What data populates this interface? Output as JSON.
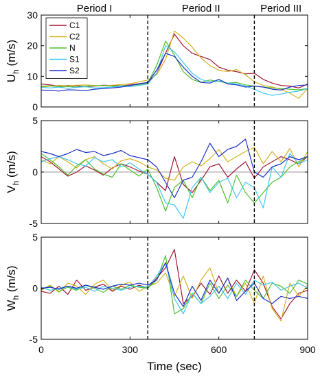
{
  "chart_data": {
    "type": "line",
    "x_tick_labels": [
      "0",
      "300",
      "600",
      "900"
    ],
    "xlabel": "Time (sec)",
    "xlim": [
      0,
      900
    ],
    "periods": [
      {
        "label": "Period I",
        "x_center": 180
      },
      {
        "label": "Period II",
        "x_center": 540
      },
      {
        "label": "Period III",
        "x_center": 810
      }
    ],
    "dividers": [
      360,
      720
    ],
    "legend": {
      "placement": "top-left",
      "entries": [
        {
          "name": "C1",
          "color": "#a2142f"
        },
        {
          "name": "C2",
          "color": "#d4b21e"
        },
        {
          "name": "N",
          "color": "#4cbf2a"
        },
        {
          "name": "S1",
          "color": "#3fc6ef"
        },
        {
          "name": "S2",
          "color": "#1d2fc8"
        }
      ]
    },
    "panels": [
      {
        "id": "uh",
        "ylabel_main": "U",
        "ylabel_sub": "h",
        "ylabel_unit": " (m/s)",
        "ylim": [
          0,
          30
        ],
        "yticks": [
          0,
          10,
          20,
          30
        ],
        "zero_line": false,
        "x": [
          0,
          30,
          60,
          90,
          120,
          150,
          180,
          210,
          240,
          270,
          300,
          330,
          360,
          390,
          420,
          450,
          480,
          510,
          540,
          570,
          600,
          630,
          660,
          690,
          720,
          750,
          780,
          810,
          840,
          870,
          900
        ],
        "series": [
          {
            "name": "C1",
            "values": [
              7.5,
              7.2,
              6.8,
              7.0,
              6.9,
              6.7,
              6.8,
              7.1,
              7.0,
              6.9,
              7.2,
              7.6,
              8.0,
              11.0,
              17.5,
              23.8,
              20.0,
              17.5,
              16.5,
              15.5,
              13.0,
              12.0,
              11.5,
              10.8,
              11.0,
              9.0,
              7.8,
              7.0,
              6.8,
              6.2,
              7.5
            ]
          },
          {
            "name": "C2",
            "values": [
              6.5,
              6.8,
              7.0,
              6.9,
              7.1,
              7.2,
              7.0,
              6.9,
              7.1,
              7.3,
              7.6,
              8.2,
              8.8,
              10.5,
              15.5,
              24.8,
              22.5,
              19.5,
              16.0,
              13.5,
              12.0,
              11.5,
              12.2,
              10.5,
              8.2,
              7.0,
              6.5,
              5.8,
              4.5,
              2.8,
              6.0
            ]
          },
          {
            "name": "N",
            "values": [
              6.8,
              6.9,
              6.6,
              6.7,
              6.5,
              6.8,
              6.9,
              7.0,
              6.8,
              6.9,
              7.0,
              7.3,
              7.8,
              13.5,
              21.5,
              17.0,
              11.5,
              9.0,
              8.0,
              8.8,
              8.3,
              7.8,
              8.0,
              7.2,
              6.8,
              6.5,
              6.2,
              6.0,
              5.8,
              5.6,
              6.0
            ]
          },
          {
            "name": "S1",
            "values": [
              6.4,
              6.2,
              6.5,
              6.1,
              6.4,
              6.6,
              6.2,
              6.3,
              6.5,
              6.8,
              6.6,
              7.0,
              7.5,
              11.0,
              20.0,
              18.0,
              14.5,
              11.0,
              9.0,
              8.2,
              8.5,
              7.8,
              7.5,
              6.8,
              5.8,
              4.5,
              3.8,
              4.2,
              4.8,
              5.2,
              6.0
            ]
          },
          {
            "name": "S2",
            "values": [
              5.5,
              5.4,
              5.2,
              5.6,
              5.5,
              5.3,
              5.8,
              6.0,
              6.2,
              6.5,
              7.0,
              7.5,
              8.0,
              12.0,
              17.5,
              16.5,
              13.0,
              10.0,
              8.0,
              7.8,
              9.0,
              7.5,
              7.2,
              6.5,
              6.8,
              6.5,
              5.8,
              5.5,
              6.5,
              7.0,
              7.2
            ]
          }
        ]
      },
      {
        "id": "vh",
        "ylabel_main": "V",
        "ylabel_sub": "h",
        "ylabel_unit": " (m/s)",
        "ylim": [
          -5,
          5
        ],
        "yticks": [
          -5,
          0,
          5
        ],
        "zero_line": true,
        "x": [
          0,
          30,
          60,
          90,
          120,
          150,
          180,
          210,
          240,
          270,
          300,
          330,
          360,
          390,
          420,
          450,
          480,
          510,
          540,
          570,
          600,
          630,
          660,
          690,
          720,
          750,
          780,
          810,
          840,
          870,
          900
        ],
        "series": [
          {
            "name": "C1",
            "values": [
              1.5,
              1.0,
              0.3,
              -0.4,
              0.0,
              0.6,
              0.2,
              -0.3,
              0.4,
              0.8,
              0.5,
              0.1,
              -0.2,
              -1.0,
              -1.8,
              1.5,
              -1.2,
              -2.0,
              -0.8,
              0.5,
              0.8,
              -0.5,
              0.3,
              1.0,
              -0.6,
              0.5,
              1.0,
              1.5,
              1.2,
              0.8,
              1.5
            ]
          },
          {
            "name": "C2",
            "values": [
              1.2,
              0.8,
              1.5,
              1.0,
              0.4,
              1.2,
              1.5,
              0.8,
              0.3,
              1.1,
              1.3,
              1.0,
              0.5,
              0.2,
              -0.6,
              -0.8,
              0.5,
              1.0,
              0.6,
              1.3,
              2.2,
              1.0,
              1.5,
              2.0,
              2.4,
              0.8,
              2.0,
              1.0,
              2.3,
              0.5,
              2.0
            ]
          },
          {
            "name": "N",
            "values": [
              1.8,
              1.2,
              0.5,
              -0.3,
              0.6,
              1.2,
              0.3,
              -0.2,
              -0.5,
              0.8,
              0.2,
              -0.4,
              0.3,
              -1.5,
              -3.8,
              -1.5,
              -0.8,
              -2.5,
              -0.5,
              -1.8,
              -0.8,
              -3.0,
              -0.3,
              -2.0,
              -3.0,
              -2.0,
              -1.0,
              -0.5,
              0.5,
              1.0,
              1.5
            ]
          },
          {
            "name": "S1",
            "values": [
              1.0,
              1.3,
              1.5,
              1.2,
              0.8,
              0.6,
              1.4,
              1.0,
              1.2,
              0.5,
              0.9,
              0.3,
              -0.2,
              -1.0,
              -3.0,
              -3.2,
              -4.5,
              -1.5,
              -0.5,
              -2.0,
              -1.0,
              -0.6,
              -2.5,
              -1.0,
              -1.5,
              -3.5,
              0.5,
              -0.5,
              1.8,
              0.8,
              1.2
            ]
          },
          {
            "name": "S2",
            "values": [
              2.0,
              1.8,
              1.5,
              1.8,
              2.2,
              1.9,
              2.0,
              1.6,
              1.8,
              2.1,
              1.6,
              1.4,
              1.2,
              0.5,
              -1.0,
              -2.5,
              -0.8,
              -0.5,
              1.0,
              2.8,
              1.5,
              2.2,
              2.5,
              3.2,
              0.0,
              -0.5,
              0.5,
              0.8,
              1.5,
              1.2,
              1.5
            ]
          }
        ]
      },
      {
        "id": "wh",
        "ylabel_main": "W",
        "ylabel_sub": "h",
        "ylabel_unit": " (m/s)",
        "ylim": [
          -5,
          5
        ],
        "yticks": [
          -5,
          0,
          5
        ],
        "zero_line": false,
        "x": [
          0,
          30,
          60,
          90,
          120,
          150,
          180,
          210,
          240,
          270,
          300,
          330,
          360,
          390,
          420,
          450,
          480,
          510,
          540,
          570,
          600,
          630,
          660,
          690,
          720,
          750,
          780,
          810,
          840,
          870,
          900
        ],
        "series": [
          {
            "name": "C1",
            "values": [
              -0.3,
              -0.5,
              0.2,
              -0.6,
              0.8,
              -0.2,
              0.1,
              0.4,
              -0.3,
              0.2,
              -0.1,
              0.3,
              0.0,
              1.0,
              2.0,
              3.8,
              -1.5,
              -0.8,
              0.5,
              -0.6,
              1.2,
              -0.5,
              0.8,
              -0.3,
              1.8,
              0.5,
              -1.8,
              -3.0,
              -1.5,
              -0.5,
              -0.2
            ]
          },
          {
            "name": "C2",
            "values": [
              -0.2,
              0.3,
              -0.4,
              0.5,
              0.2,
              -0.6,
              0.4,
              0.8,
              -0.2,
              0.3,
              0.6,
              -0.3,
              0.2,
              0.5,
              1.5,
              -0.8,
              1.2,
              -1.0,
              0.8,
              2.0,
              -0.5,
              1.0,
              -0.8,
              0.5,
              -1.5,
              1.2,
              -2.0,
              -3.2,
              0.5,
              -0.8,
              0.3
            ]
          },
          {
            "name": "N",
            "values": [
              -0.1,
              0.2,
              -0.3,
              0.1,
              -0.2,
              0.3,
              0.0,
              -0.4,
              0.2,
              -0.1,
              0.3,
              0.1,
              0.0,
              0.8,
              3.2,
              -2.5,
              -2.0,
              -0.5,
              -1.5,
              0.5,
              -1.0,
              0.3,
              -0.8,
              0.8,
              -0.2,
              -1.0,
              0.5,
              0.2,
              -0.5,
              0.8,
              0.4
            ]
          },
          {
            "name": "S1",
            "values": [
              0.1,
              -0.2,
              0.0,
              0.2,
              -0.1,
              0.1,
              -0.3,
              0.2,
              0.0,
              -0.2,
              0.1,
              0.2,
              0.1,
              1.2,
              2.5,
              -1.0,
              -2.5,
              -0.5,
              -1.5,
              -0.8,
              0.2,
              -1.0,
              0.5,
              -0.6,
              0.8,
              0.3,
              0.6,
              -0.2,
              0.2,
              0.5,
              0.0
            ]
          },
          {
            "name": "S2",
            "values": [
              0.0,
              0.1,
              -0.1,
              0.2,
              0.0,
              0.3,
              0.1,
              -0.1,
              0.2,
              0.4,
              0.3,
              0.5,
              0.3,
              0.8,
              2.5,
              -0.5,
              -1.8,
              0.2,
              -1.2,
              0.8,
              -0.5,
              1.0,
              -1.2,
              -0.3,
              0.5,
              -1.0,
              -1.5,
              -0.8,
              -1.0,
              -0.8,
              -1.0
            ]
          }
        ]
      }
    ]
  }
}
